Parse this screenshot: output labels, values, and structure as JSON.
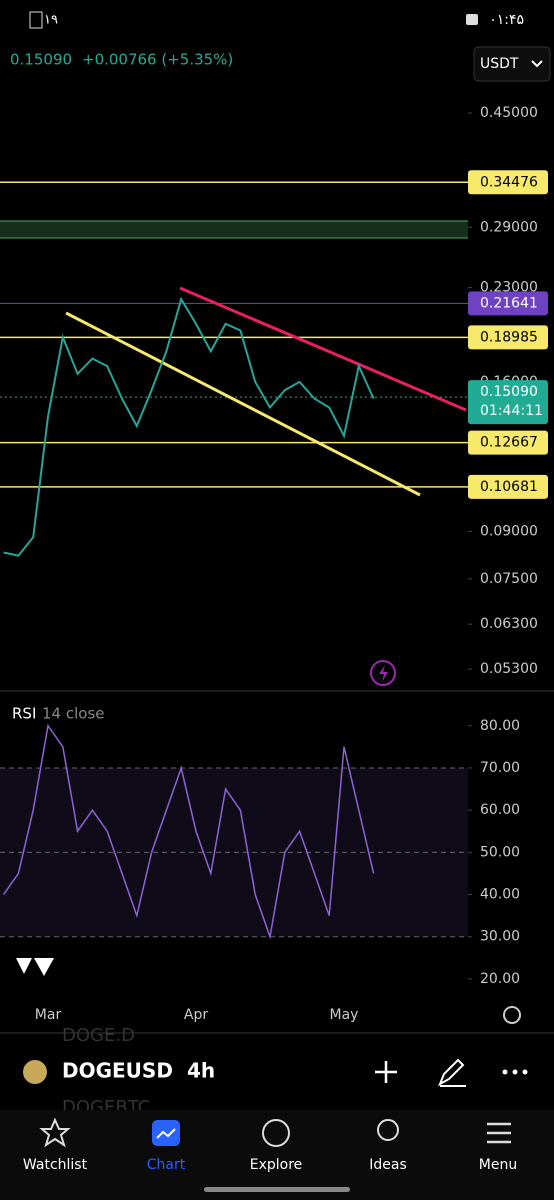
{
  "status_bar": {
    "battery": "۱۹",
    "time": "۰۱:۴۵"
  },
  "header": {
    "price": "0.15090",
    "change": "+0.00766 (+5.35%)",
    "currency": "USDT"
  },
  "chart_data": [
    {
      "type": "line",
      "log_scale": true,
      "color": "#26a69a",
      "values": [
        0.083,
        0.082,
        0.088,
        0.14,
        0.19,
        0.165,
        0.175,
        0.17,
        0.15,
        0.135,
        0.155,
        0.18,
        0.22,
        0.2,
        0.18,
        0.2,
        0.195,
        0.16,
        0.145,
        0.155,
        0.16,
        0.15,
        0.145,
        0.13,
        0.17,
        0.15
      ],
      "ylim": [
        0.0489,
        0.596
      ],
      "yticks": [
        {
          "value": 0.45,
          "label": "0.45000"
        },
        {
          "value": 0.29,
          "label": "0.29000"
        },
        {
          "value": 0.23,
          "label": "0.23000"
        },
        {
          "value": 0.16,
          "label": "0.16000"
        },
        {
          "value": 0.09,
          "label": "0.09000"
        },
        {
          "value": 0.075,
          "label": "0.07500"
        },
        {
          "value": 0.063,
          "label": "0.06300"
        },
        {
          "value": 0.053,
          "label": "0.05300"
        }
      ],
      "levels": [
        {
          "value": 0.34476,
          "color": "#f7e96b"
        },
        {
          "value": 0.21641,
          "color": "#6f42c1"
        },
        {
          "value": 0.18985,
          "color": "#f7e96b"
        },
        {
          "value": 0.12667,
          "color": "#f7e96b"
        },
        {
          "value": 0.10681,
          "color": "#f7e96b"
        }
      ],
      "current": {
        "value": 0.1509,
        "label": "0.15090",
        "countdown": "01:44:11",
        "color": "#22ab94"
      }
    },
    {
      "type": "line",
      "title": "RSI",
      "subtitle": "14 close",
      "color": "#8e63d6",
      "categories": [
        null,
        null,
        null,
        "Mar",
        null,
        null,
        null,
        null,
        null,
        null,
        null,
        null,
        null,
        "Apr",
        null,
        null,
        null,
        null,
        null,
        null,
        null,
        null,
        null,
        "May",
        null,
        null
      ],
      "values": [
        40,
        45,
        60,
        80,
        75,
        55,
        60,
        55,
        45,
        35,
        50,
        60,
        70,
        55,
        45,
        65,
        60,
        40,
        30,
        50,
        55,
        45,
        35,
        75,
        60,
        45
      ],
      "ylim": [
        15,
        88
      ],
      "yticks": [
        {
          "value": 80,
          "label": "80.00"
        },
        {
          "value": 70,
          "label": "70.00"
        },
        {
          "value": 60,
          "label": "60.00"
        },
        {
          "value": 50,
          "label": "50.00"
        },
        {
          "value": 40,
          "label": "40.00"
        },
        {
          "value": 30,
          "label": "30.00"
        },
        {
          "value": 20,
          "label": "20.00"
        }
      ],
      "reference_lines": [
        70,
        50,
        30
      ]
    }
  ],
  "symbol_bar": {
    "symbol": "DOGEUSD",
    "interval": "4h",
    "behind": [
      "DOGE.D",
      "DOGEBTC"
    ]
  },
  "nav": [
    "Watchlist",
    "Chart",
    "Explore",
    "Ideas",
    "Menu"
  ]
}
